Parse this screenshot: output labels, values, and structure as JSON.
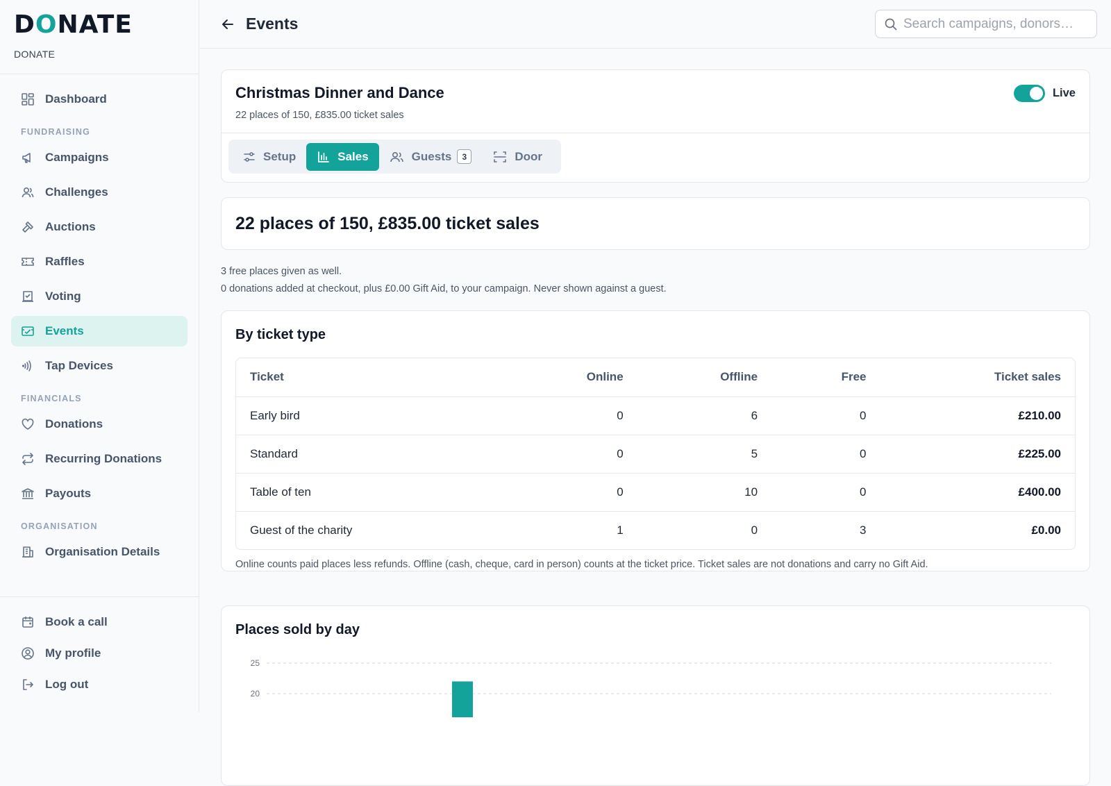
{
  "brand": {
    "logo_pre": "D",
    "logo_o": "O",
    "logo_post": "NATE",
    "subtitle": "DONATE"
  },
  "sidebar": {
    "dashboard": "Dashboard",
    "section_fundraising": "FUNDRAISING",
    "fundraising": [
      {
        "label": "Campaigns",
        "icon": "megaphone-icon"
      },
      {
        "label": "Challenges",
        "icon": "users-icon"
      },
      {
        "label": "Auctions",
        "icon": "gavel-icon"
      },
      {
        "label": "Raffles",
        "icon": "ticket-icon"
      },
      {
        "label": "Voting",
        "icon": "ballot-icon"
      },
      {
        "label": "Events",
        "icon": "event-ticket-icon",
        "active": true
      },
      {
        "label": "Tap Devices",
        "icon": "contactless-icon"
      }
    ],
    "section_financials": "FINANCIALS",
    "financials": [
      {
        "label": "Donations",
        "icon": "heart-icon"
      },
      {
        "label": "Recurring Donations",
        "icon": "repeat-icon"
      },
      {
        "label": "Payouts",
        "icon": "bank-icon"
      }
    ],
    "section_organisation": "ORGANISATION",
    "organisation": [
      {
        "label": "Organisation Details",
        "icon": "building-icon"
      }
    ],
    "bottom": [
      {
        "label": "Book a call",
        "icon": "calendar-icon"
      },
      {
        "label": "My profile",
        "icon": "user-circle-icon"
      },
      {
        "label": "Log out",
        "icon": "logout-icon"
      }
    ]
  },
  "header": {
    "title": "Events",
    "search_placeholder": "Search campaigns, donors…"
  },
  "event": {
    "title": "Christmas Dinner and Dance",
    "subtitle": "22 places of 150, £835.00 ticket sales",
    "live_label": "Live",
    "live_on": true,
    "tabs": [
      {
        "label": "Setup",
        "icon": "sliders-icon"
      },
      {
        "label": "Sales",
        "icon": "bar-chart-icon",
        "active": true
      },
      {
        "label": "Guests",
        "icon": "guests-icon",
        "badge": "3"
      },
      {
        "label": "Door",
        "icon": "scan-icon"
      }
    ]
  },
  "summary": {
    "title": "22 places of 150, £835.00 ticket sales",
    "note_free": "3 free places given as well.",
    "note_donations": "0 donations added at checkout, plus £0.00 Gift Aid, to your campaign. Never shown against a guest."
  },
  "ticket_types": {
    "title": "By ticket type",
    "columns": [
      "Ticket",
      "Online",
      "Offline",
      "Free",
      "Ticket sales"
    ],
    "rows": [
      [
        "Early bird",
        "0",
        "6",
        "0",
        "£210.00"
      ],
      [
        "Standard",
        "0",
        "5",
        "0",
        "£225.00"
      ],
      [
        "Table of ten",
        "0",
        "10",
        "0",
        "£400.00"
      ],
      [
        "Guest of the charity",
        "1",
        "0",
        "3",
        "£0.00"
      ]
    ],
    "note": "Online counts paid places less refunds. Offline (cash, cheque, card in person) counts at the ticket price. Ticket sales are not donations and carry no Gift Aid."
  },
  "places_chart": {
    "title": "Places sold by day",
    "chart_data": {
      "type": "bar",
      "title": "Places sold by day",
      "yticks": [
        25,
        20
      ],
      "ylim": [
        0,
        25
      ],
      "grid": true,
      "bar_color": "#14a39a",
      "visible_bars": [
        {
          "value": 22
        }
      ]
    }
  },
  "colors": {
    "accent": "#14a39a",
    "active_bg": "#dcf3f0"
  }
}
